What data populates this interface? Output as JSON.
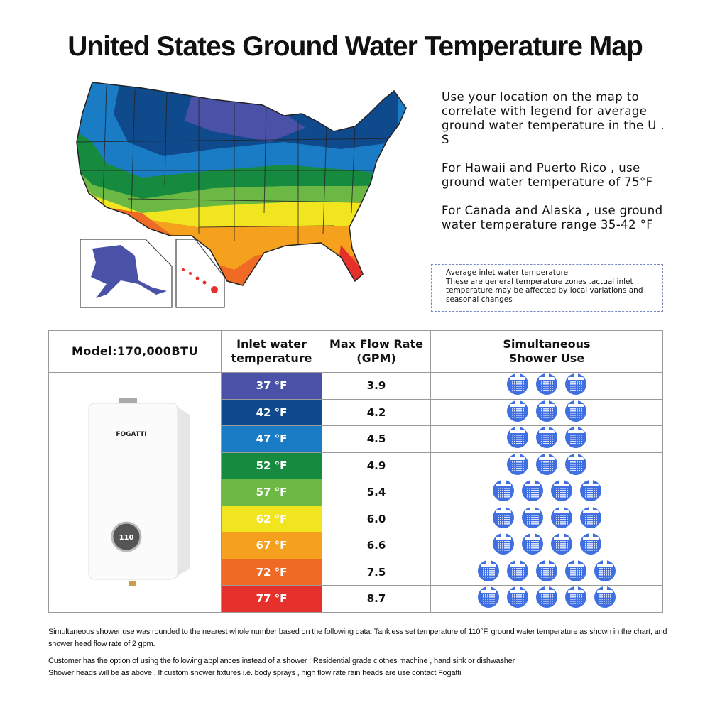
{
  "title": "United States Ground Water Temperature Map",
  "side_text": [
    "Use your location on the map to correlate with legend for average ground water temperature in the U . S",
    "For Hawaii and Puerto Rico , use ground water temperature of 75°F",
    "For Canada and Alaska , use ground water temperature range 35-42 °F"
  ],
  "legend_note": {
    "line1": "Average inlet water temperature",
    "line2": "These are general temperature zones .actual inlet temperature may be affected by local variations and seasonal changes"
  },
  "table": {
    "headers": [
      "Model:170,000BTU",
      "Inlet water temperature",
      "Max Flow Rate (GPM)",
      "Simultaneous Shower Use"
    ],
    "product_brand": "FOGATTI",
    "product_display": "110",
    "rows": [
      {
        "temp": "37 °F",
        "flow": "3.9",
        "showers": 3,
        "color": "#4a52a8"
      },
      {
        "temp": "42 °F",
        "flow": "4.2",
        "showers": 3,
        "color": "#0f4a8c"
      },
      {
        "temp": "47 °F",
        "flow": "4.5",
        "showers": 3,
        "color": "#1b7cc6"
      },
      {
        "temp": "52 °F",
        "flow": "4.9",
        "showers": 3,
        "color": "#168a3f"
      },
      {
        "temp": "57 °F",
        "flow": "5.4",
        "showers": 4,
        "color": "#6cb845"
      },
      {
        "temp": "62 °F",
        "flow": "6.0",
        "showers": 4,
        "color": "#f1e51f"
      },
      {
        "temp": "67 °F",
        "flow": "6.6",
        "showers": 4,
        "color": "#f5a11d"
      },
      {
        "temp": "72 °F",
        "flow": "7.5",
        "showers": 5,
        "color": "#ee6a25"
      },
      {
        "temp": "77 °F",
        "flow": "8.7",
        "showers": 5,
        "color": "#e5302b"
      }
    ]
  },
  "shower_icon_color": "#3f6fe0",
  "footnotes": [
    "Simultaneous shower use was rounded to the nearest whole number based on the following data: Tankless set temperature of 110°F, ground water temperature as shown in the chart, and shower head flow rate of 2 gpm.",
    "Customer has the option of using the following appliances instead of a shower : Residential grade clothes machine , hand sink or dishwasher",
    "Shower heads will be as above . If custom shower fixtures i.e. body sprays , high flow rate rain heads are use contact Fogatti"
  ]
}
